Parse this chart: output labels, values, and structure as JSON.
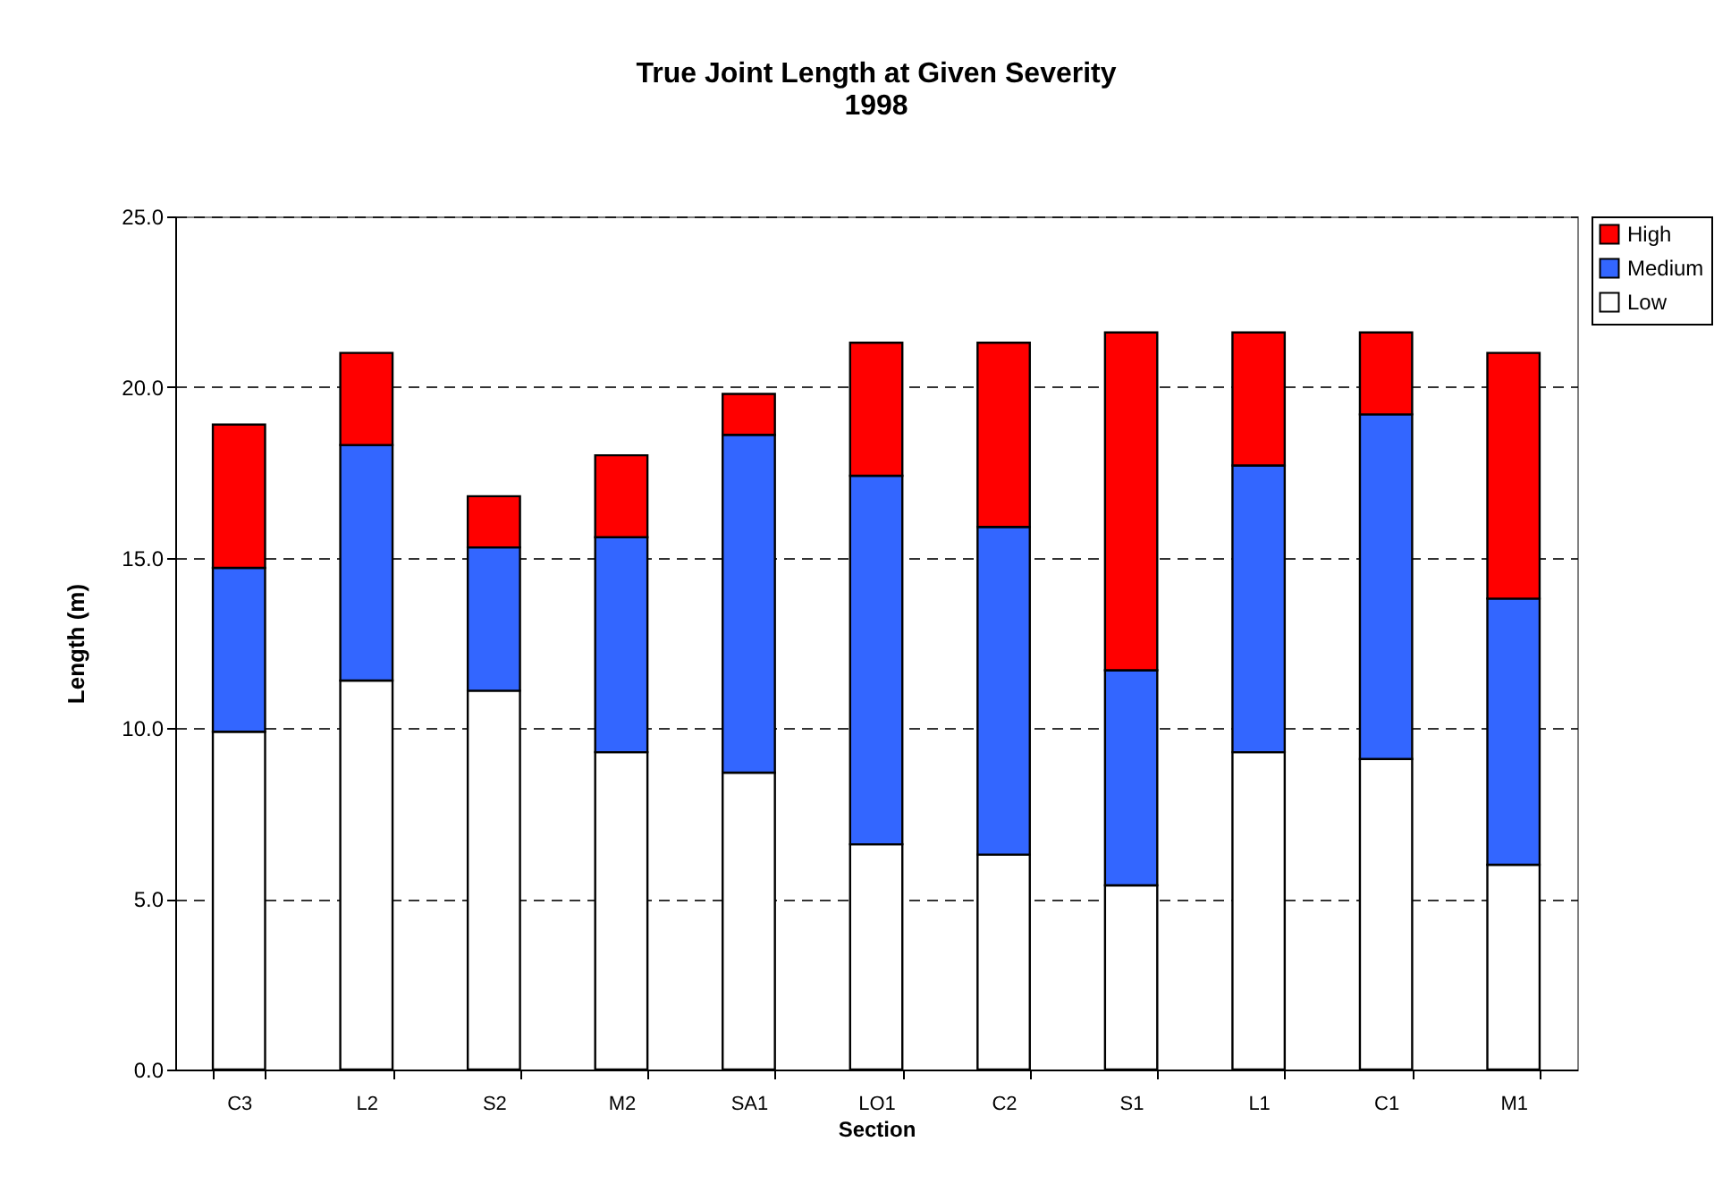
{
  "chart_data": {
    "type": "bar",
    "title": "True Joint Length at Given Severity",
    "subtitle": "1998",
    "xlabel": "Section",
    "ylabel": "Length (m)",
    "categories": [
      "C3",
      "L2",
      "S2",
      "M2",
      "SA1",
      "LO1",
      "C2",
      "S1",
      "L1",
      "C1",
      "M1"
    ],
    "series": [
      {
        "name": "Low",
        "color": "#ffffff",
        "values": [
          9.9,
          11.4,
          11.1,
          9.3,
          8.7,
          6.6,
          6.3,
          5.4,
          9.3,
          9.1,
          6.0
        ]
      },
      {
        "name": "Medium",
        "color": "#3366ff",
        "values": [
          4.8,
          6.9,
          4.2,
          6.3,
          9.9,
          10.8,
          9.6,
          6.3,
          8.4,
          10.1,
          7.8
        ]
      },
      {
        "name": "High",
        "color": "#ff0000",
        "values": [
          4.2,
          2.7,
          1.5,
          2.4,
          1.2,
          3.9,
          5.4,
          9.9,
          3.9,
          2.4,
          7.2
        ]
      }
    ],
    "stacked": true,
    "ylim": [
      0,
      25
    ],
    "yticks": [
      {
        "value": 0,
        "label": "0.0"
      },
      {
        "value": 5,
        "label": "5.0"
      },
      {
        "value": 10,
        "label": "10.0"
      },
      {
        "value": 15,
        "label": "15.0"
      },
      {
        "value": 20,
        "label": "20.0"
      },
      {
        "value": 25,
        "label": "25.0"
      }
    ],
    "grid": "y",
    "legend": "right"
  }
}
